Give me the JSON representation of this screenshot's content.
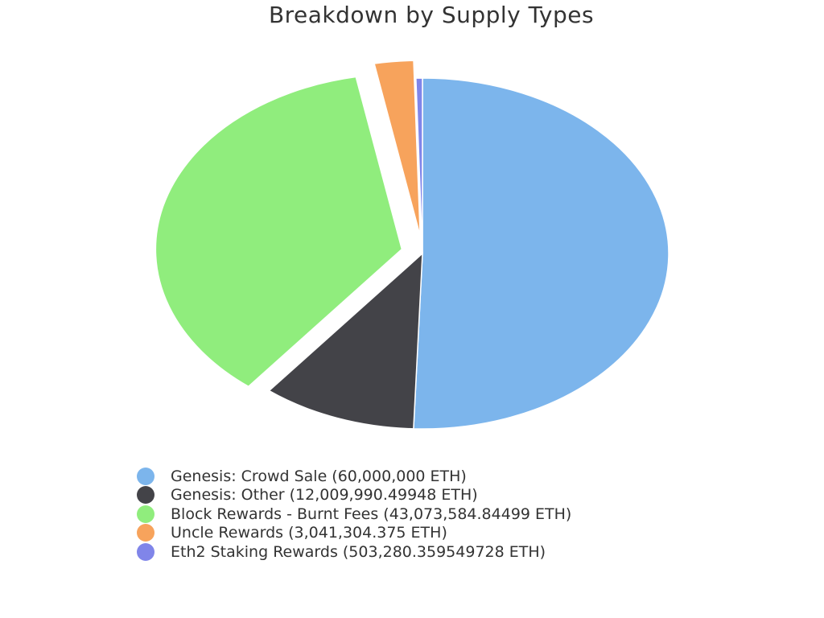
{
  "chart_data": {
    "type": "pie",
    "title": "Breakdown by Supply Types",
    "unit": "ETH",
    "slices": [
      {
        "label": "Genesis: Crowd Sale (60,000,000 ETH)",
        "value": 60000000,
        "color": "#7cb5ec",
        "exploded": false
      },
      {
        "label": "Genesis: Other (12,009,990.49948 ETH)",
        "value": 12009990.49948,
        "color": "#434348",
        "exploded": false
      },
      {
        "label": "Block Rewards - Burnt Fees (43,073,584.84499 ETH)",
        "value": 43073584.84499,
        "color": "#90ed7d",
        "exploded": true
      },
      {
        "label": "Uncle Rewards (3,041,304.375 ETH)",
        "value": 3041304.375,
        "color": "#f7a35c",
        "exploded": true
      },
      {
        "label": "Eth2 Staking Rewards (503,280.359549728 ETH)",
        "value": 503280.359549728,
        "color": "#8085e9",
        "exploded": false
      }
    ],
    "legend_position": "bottom"
  }
}
